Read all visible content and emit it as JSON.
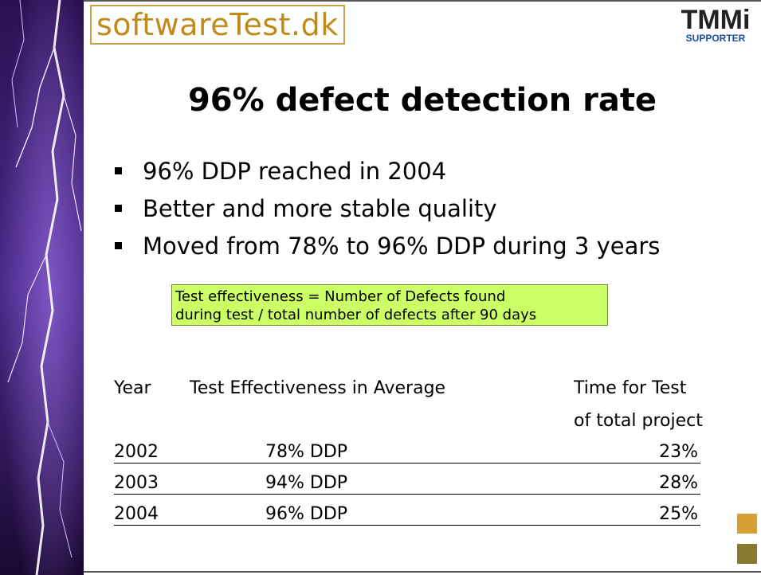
{
  "header": {
    "logo": "softwareTest.dk",
    "badge": "TMMi",
    "badge_sub": "SUPPORTER"
  },
  "title": "96% defect detection rate",
  "bullets": [
    "96% DDP reached in 2004",
    "Better and more stable quality",
    "Moved from 78% to 96% DDP during 3 years"
  ],
  "note": [
    "Test effectiveness = Number of Defects found",
    "during test / total number of defects after 90 days"
  ],
  "table": {
    "header": [
      "Year",
      "Test Effectiveness in Average",
      "Time for Test",
      "of total project"
    ],
    "rows": [
      [
        "2002",
        "78% DDP",
        "23%"
      ],
      [
        "2003",
        "94% DDP",
        "28%"
      ],
      [
        "2004",
        "96% DDP",
        "25%"
      ]
    ]
  }
}
